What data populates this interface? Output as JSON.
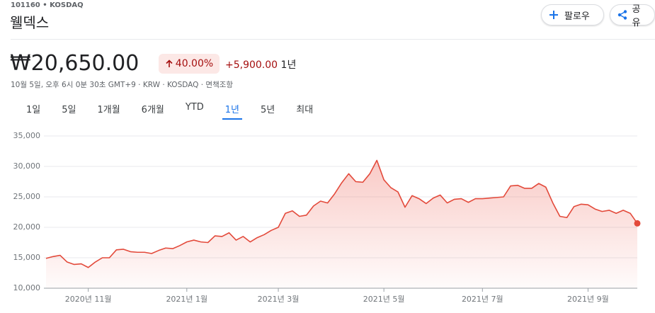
{
  "header": {
    "ticker": "101160 • KOSDAQ",
    "name": "웰덱스",
    "follow": "팔로우",
    "share": "공유"
  },
  "quote": {
    "price": "₩20,650.00",
    "change_percent": "40.00%",
    "change": "+5,900.00",
    "period": "1년",
    "info": "10월 5일, 오후 6시 0분 30초 GMT+9 · KRW · KOSDAQ ·",
    "disclaimer": "면책조항"
  },
  "tabs": {
    "items": [
      "1일",
      "5일",
      "1개월",
      "6개월",
      "YTD",
      "1년",
      "5년",
      "최대"
    ],
    "selected": 5
  },
  "chart_data": {
    "type": "line",
    "categories": [
      null,
      null,
      null,
      null,
      null,
      null,
      "2020년 11월",
      null,
      null,
      null,
      null,
      null,
      null,
      null,
      null,
      null,
      null,
      null,
      null,
      null,
      "2021년 1월",
      null,
      null,
      null,
      null,
      null,
      null,
      null,
      null,
      null,
      null,
      null,
      null,
      "2021년 3월",
      null,
      null,
      null,
      null,
      null,
      null,
      null,
      null,
      null,
      null,
      null,
      null,
      null,
      null,
      "2021년 5월",
      null,
      null,
      null,
      null,
      null,
      null,
      null,
      null,
      null,
      null,
      null,
      null,
      null,
      "2021년 7월",
      null,
      null,
      null,
      null,
      null,
      null,
      null,
      null,
      null,
      null,
      null,
      null,
      null,
      null,
      "2021년 9월",
      null,
      null,
      null,
      null,
      null,
      null,
      null
    ],
    "series": [
      {
        "color": "#e34a3b",
        "values": [
          14900,
          15200,
          15400,
          14300,
          13900,
          14000,
          13400,
          14300,
          15000,
          15000,
          16300,
          16400,
          16000,
          15900,
          15900,
          15700,
          16200,
          16600,
          16500,
          17000,
          17600,
          17900,
          17600,
          17500,
          18600,
          18500,
          19100,
          17900,
          18500,
          17600,
          18300,
          18800,
          19500,
          20000,
          22300,
          22700,
          21800,
          22000,
          23500,
          24300,
          24000,
          25500,
          27300,
          28800,
          27500,
          27400,
          28800,
          31000,
          27800,
          26500,
          25800,
          23300,
          25200,
          24700,
          23900,
          24800,
          25300,
          24000,
          24600,
          24700,
          24100,
          24700,
          24700,
          24800,
          24900,
          25000,
          26800,
          26900,
          26400,
          26400,
          27200,
          26600,
          24000,
          21800,
          21600,
          23400,
          23800,
          23700,
          23000,
          22600,
          22800,
          22300,
          22800,
          22300,
          20650
        ]
      }
    ],
    "ylim": [
      10000,
      35000
    ],
    "yticks": [
      {
        "value": 10000,
        "label": "10,000"
      },
      {
        "value": 15000,
        "label": "15,000"
      },
      {
        "value": 20000,
        "label": "20,000"
      },
      {
        "value": 25000,
        "label": "25,000"
      },
      {
        "value": 30000,
        "label": "30,000"
      },
      {
        "value": 35000,
        "label": "35,000"
      }
    ],
    "grid": true
  }
}
